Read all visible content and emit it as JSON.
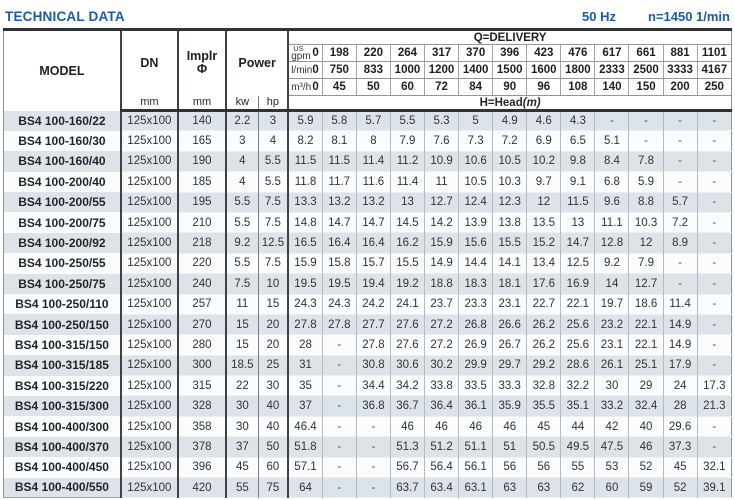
{
  "page": {
    "title": "TECHNICAL DATA",
    "frequency": "50 Hz",
    "speed": "n=1450 1/min"
  },
  "colors": {
    "title_blue": "#1a5ba6",
    "row_alt": "#dde4e9",
    "row_plain": "#fbfcfd",
    "border_dark": "#3d4246"
  },
  "table": {
    "headers": {
      "model": "MODEL",
      "dn": "DN",
      "implr_line1": "Implr",
      "implr_line2": "Φ",
      "power": "Power",
      "delivery": "Q=DELIVERY",
      "head_label": "H=Head",
      "head_unit": "(m)",
      "dn_unit": "mm",
      "implr_unit": "mm",
      "kw": "kw",
      "hp": "hp"
    },
    "delivery_header": [
      {
        "unit_top": "US",
        "unit": "gpm",
        "values": [
          "0",
          "198",
          "220",
          "264",
          "317",
          "370",
          "396",
          "423",
          "476",
          "617",
          "661",
          "881",
          "1101"
        ]
      },
      {
        "unit": "l/min",
        "values": [
          "0",
          "750",
          "833",
          "1000",
          "1200",
          "1400",
          "1500",
          "1600",
          "1800",
          "2333",
          "2500",
          "3333",
          "4167"
        ]
      },
      {
        "unit": "m³/h",
        "values": [
          "0",
          "45",
          "50",
          "60",
          "72",
          "84",
          "90",
          "96",
          "108",
          "140",
          "150",
          "200",
          "250"
        ]
      }
    ],
    "rows": [
      {
        "model": "BS4 100-160/22",
        "dn": "125x100",
        "implr": "140",
        "kw": "2.2",
        "hp": "3",
        "head": [
          "5.9",
          "5.8",
          "5.7",
          "5.5",
          "5.3",
          "5",
          "4.9",
          "4.6",
          "4.3",
          "-",
          "-",
          "-",
          "-"
        ]
      },
      {
        "model": "BS4 100-160/30",
        "dn": "125x100",
        "implr": "165",
        "kw": "3",
        "hp": "4",
        "head": [
          "8.2",
          "8.1",
          "8",
          "7.9",
          "7.6",
          "7.3",
          "7.2",
          "6.9",
          "6.5",
          "5.1",
          "-",
          "-",
          "-"
        ]
      },
      {
        "model": "BS4 100-160/40",
        "dn": "125x100",
        "implr": "190",
        "kw": "4",
        "hp": "5.5",
        "head": [
          "11.5",
          "11.5",
          "11.4",
          "11.2",
          "10.9",
          "10.6",
          "10.5",
          "10.2",
          "9.8",
          "8.4",
          "7.8",
          "-",
          "-"
        ]
      },
      {
        "model": "BS4 100-200/40",
        "dn": "125x100",
        "implr": "185",
        "kw": "4",
        "hp": "5.5",
        "head": [
          "11.8",
          "11.7",
          "11.6",
          "11.4",
          "11",
          "10.5",
          "10.3",
          "9.7",
          "9.1",
          "6.8",
          "5.9",
          "-",
          "-"
        ]
      },
      {
        "model": "BS4 100-200/55",
        "dn": "125x100",
        "implr": "195",
        "kw": "5.5",
        "hp": "7.5",
        "head": [
          "13.3",
          "13.2",
          "13.2",
          "13",
          "12.7",
          "12.4",
          "12.3",
          "12",
          "11.5",
          "9.6",
          "8.8",
          "5.7",
          "-"
        ]
      },
      {
        "model": "BS4 100-200/75",
        "dn": "125x100",
        "implr": "210",
        "kw": "5.5",
        "hp": "7.5",
        "head": [
          "14.8",
          "14.7",
          "14.7",
          "14.5",
          "14.2",
          "13.9",
          "13.8",
          "13.5",
          "13",
          "11.1",
          "10.3",
          "7.2",
          "-"
        ]
      },
      {
        "model": "BS4 100-200/92",
        "dn": "125x100",
        "implr": "218",
        "kw": "9.2",
        "hp": "12.5",
        "head": [
          "16.5",
          "16.4",
          "16.4",
          "16.2",
          "15.9",
          "15.6",
          "15.5",
          "15.2",
          "14.7",
          "12.8",
          "12",
          "8.9",
          "-"
        ]
      },
      {
        "model": "BS4 100-250/55",
        "dn": "125x100",
        "implr": "220",
        "kw": "5.5",
        "hp": "7.5",
        "head": [
          "15.9",
          "15.8",
          "15.7",
          "15.5",
          "14.9",
          "14.4",
          "14.1",
          "13.4",
          "12.5",
          "9.2",
          "7.9",
          "-",
          "-"
        ]
      },
      {
        "model": "BS4 100-250/75",
        "dn": "125x100",
        "implr": "240",
        "kw": "7.5",
        "hp": "10",
        "head": [
          "19.5",
          "19.5",
          "19.4",
          "19.2",
          "18.8",
          "18.3",
          "18.1",
          "17.6",
          "16.9",
          "14",
          "12.7",
          "-",
          "-"
        ]
      },
      {
        "model": "BS4 100-250/110",
        "dn": "125x100",
        "implr": "257",
        "kw": "11",
        "hp": "15",
        "head": [
          "24.3",
          "24.3",
          "24.2",
          "24.1",
          "23.7",
          "23.3",
          "23.1",
          "22.7",
          "22.1",
          "19.7",
          "18.6",
          "11.4",
          "-"
        ]
      },
      {
        "model": "BS4 100-250/150",
        "dn": "125x100",
        "implr": "270",
        "kw": "15",
        "hp": "20",
        "head": [
          "27.8",
          "27.8",
          "27.7",
          "27.6",
          "27.2",
          "26.8",
          "26.6",
          "26.2",
          "25.6",
          "23.2",
          "22.1",
          "14.9",
          "-"
        ]
      },
      {
        "model": "BS4 100-315/150",
        "dn": "125x100",
        "implr": "280",
        "kw": "15",
        "hp": "20",
        "head": [
          "28",
          "-",
          "27.8",
          "27.6",
          "27.2",
          "26.9",
          "26.7",
          "26.2",
          "25.6",
          "23.1",
          "22.1",
          "14.9",
          "-"
        ]
      },
      {
        "model": "BS4 100-315/185",
        "dn": "125x100",
        "implr": "300",
        "kw": "18.5",
        "hp": "25",
        "head": [
          "31",
          "-",
          "30.8",
          "30.6",
          "30.2",
          "29.9",
          "29.7",
          "29.2",
          "28.6",
          "26.1",
          "25.1",
          "17.9",
          "-"
        ]
      },
      {
        "model": "BS4 100-315/220",
        "dn": "125x100",
        "implr": "315",
        "kw": "22",
        "hp": "30",
        "head": [
          "35",
          "-",
          "34.4",
          "34.2",
          "33.8",
          "33.5",
          "33.3",
          "32.8",
          "32.2",
          "30",
          "29",
          "24",
          "17.3"
        ]
      },
      {
        "model": "BS4 100-315/300",
        "dn": "125x100",
        "implr": "328",
        "kw": "30",
        "hp": "40",
        "head": [
          "37",
          "-",
          "36.8",
          "36.7",
          "36.4",
          "36.1",
          "35.9",
          "35.5",
          "35.1",
          "33.2",
          "32.4",
          "28",
          "21.3"
        ]
      },
      {
        "model": "BS4 100-400/300",
        "dn": "125x100",
        "implr": "358",
        "kw": "30",
        "hp": "40",
        "head": [
          "46.4",
          "-",
          "-",
          "46",
          "46",
          "46",
          "46",
          "45",
          "44",
          "42",
          "40",
          "29.6",
          "-"
        ]
      },
      {
        "model": "BS4 100-400/370",
        "dn": "125x100",
        "implr": "378",
        "kw": "37",
        "hp": "50",
        "head": [
          "51.8",
          "-",
          "-",
          "51.3",
          "51.2",
          "51.1",
          "51",
          "50.5",
          "49.5",
          "47.5",
          "46",
          "37.3",
          "-"
        ]
      },
      {
        "model": "BS4 100-400/450",
        "dn": "125x100",
        "implr": "396",
        "kw": "45",
        "hp": "60",
        "head": [
          "57.1",
          "-",
          "-",
          "56.7",
          "56.4",
          "56.1",
          "56",
          "56",
          "55",
          "53",
          "52",
          "45",
          "32.1"
        ]
      },
      {
        "model": "BS4 100-400/550",
        "dn": "125x100",
        "implr": "420",
        "kw": "55",
        "hp": "75",
        "head": [
          "64",
          "-",
          "-",
          "63.7",
          "63.4",
          "63.1",
          "63",
          "63",
          "62",
          "60",
          "59",
          "52",
          "39.1"
        ]
      }
    ]
  }
}
